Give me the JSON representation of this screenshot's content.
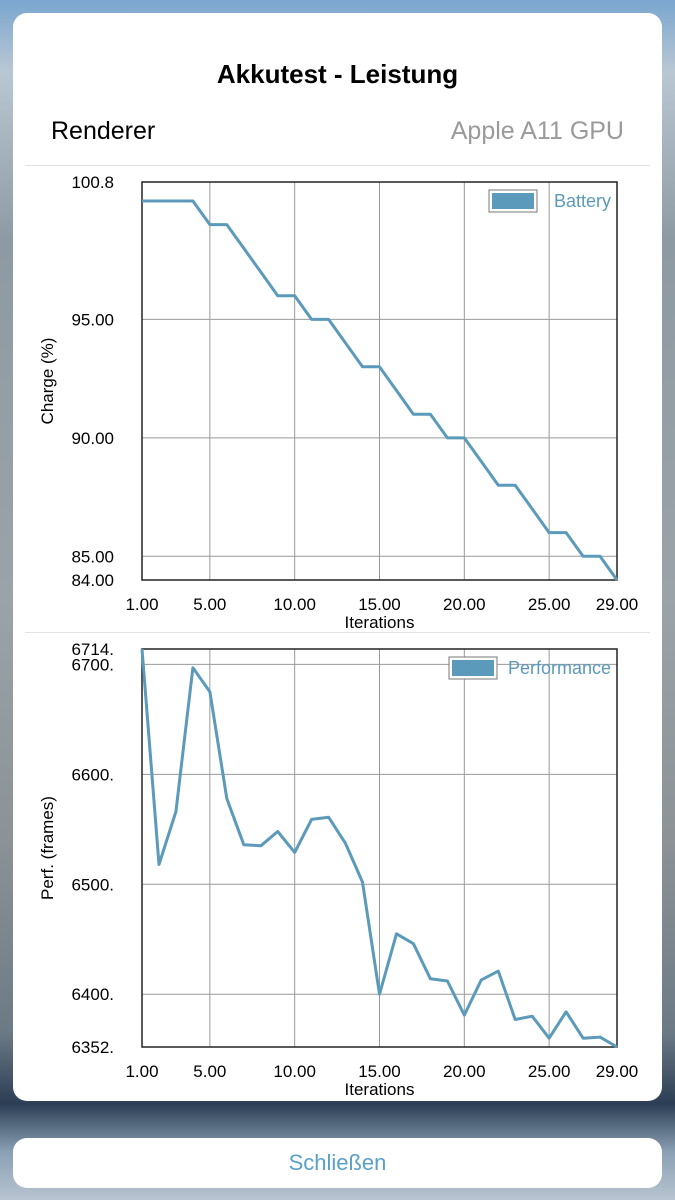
{
  "sheet": {
    "title": "Akkutest - Leistung",
    "renderer_label": "Renderer",
    "renderer_value": "Apple A11 GPU"
  },
  "close_label": "Schließen",
  "colors": {
    "series": "#5b9aba",
    "grid": "#9a9a9a",
    "link": "#5aa0c8"
  },
  "chart_data": [
    {
      "type": "line",
      "xlabel": "Iterations",
      "ylabel": "Charge (%)",
      "xlim": [
        1,
        29
      ],
      "ylim": [
        84,
        100.8
      ],
      "xticks": [
        1,
        5,
        10,
        15,
        20,
        25,
        29
      ],
      "xtick_labels": [
        "1.00",
        "5.00",
        "10.00",
        "15.00",
        "20.00",
        "25.00",
        "29.00"
      ],
      "yticks": [
        84,
        85,
        90,
        95,
        100.8
      ],
      "ytick_labels": [
        "84.00",
        "85.00",
        "90.00",
        "95.00",
        "100.8"
      ],
      "grid": true,
      "legend": "top-right",
      "series": [
        {
          "name": "Battery",
          "x": [
            1,
            2,
            3,
            4,
            5,
            6,
            7,
            8,
            9,
            10,
            11,
            12,
            13,
            14,
            15,
            16,
            17,
            18,
            19,
            20,
            21,
            22,
            23,
            24,
            25,
            26,
            27,
            28,
            29
          ],
          "values": [
            100,
            100,
            100,
            100,
            99,
            99,
            98,
            97,
            96,
            96,
            95,
            95,
            94,
            93,
            93,
            92,
            91,
            91,
            90,
            90,
            89,
            88,
            88,
            87,
            86,
            86,
            85,
            85,
            84
          ]
        }
      ]
    },
    {
      "type": "line",
      "xlabel": "Iterations",
      "ylabel": "Perf. (frames)",
      "xlim": [
        1,
        29
      ],
      "ylim": [
        6352,
        6714
      ],
      "xticks": [
        1,
        5,
        10,
        15,
        20,
        25,
        29
      ],
      "xtick_labels": [
        "1.00",
        "5.00",
        "10.00",
        "15.00",
        "20.00",
        "25.00",
        "29.00"
      ],
      "yticks": [
        6352,
        6400,
        6500,
        6600,
        6700,
        6714
      ],
      "ytick_labels": [
        "6352.",
        "6400.",
        "6500.",
        "6600.",
        "6700.",
        "6714."
      ],
      "grid": true,
      "legend": "top-right",
      "series": [
        {
          "name": "Performance",
          "x": [
            1,
            2,
            3,
            4,
            5,
            6,
            7,
            8,
            9,
            10,
            11,
            12,
            13,
            14,
            15,
            16,
            17,
            18,
            19,
            20,
            21,
            22,
            23,
            24,
            25,
            26,
            27,
            28,
            29
          ],
          "values": [
            6714,
            6518,
            6566,
            6697,
            6675,
            6578,
            6536,
            6535,
            6548,
            6529,
            6559,
            6561,
            6537,
            6502,
            6400,
            6455,
            6446,
            6414,
            6412,
            6381,
            6413,
            6421,
            6377,
            6380,
            6360,
            6384,
            6360,
            6361,
            6352
          ]
        }
      ]
    }
  ]
}
